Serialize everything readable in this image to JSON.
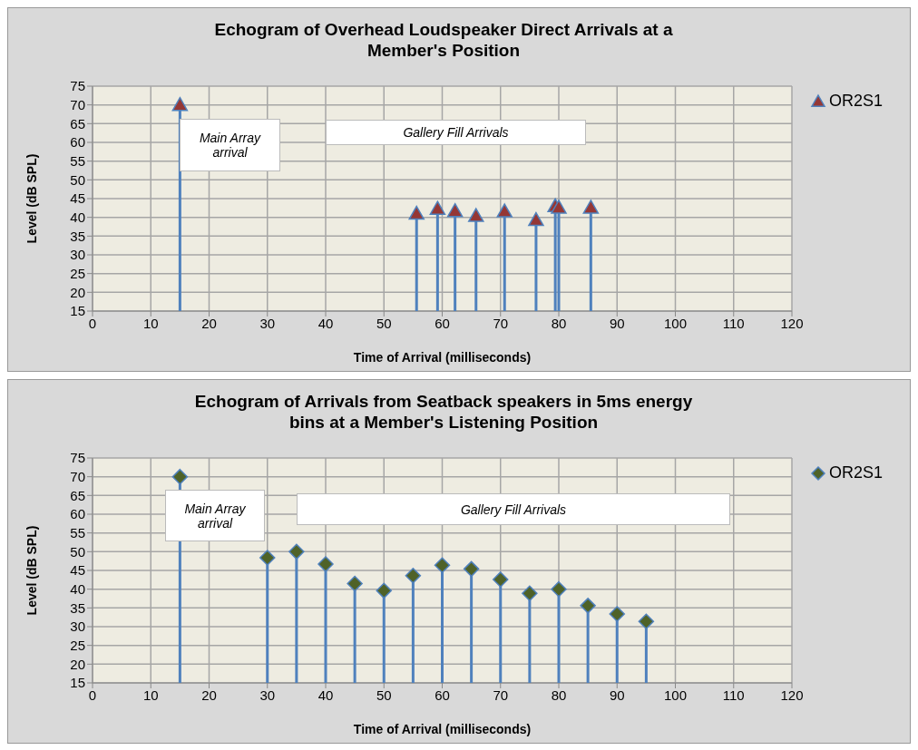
{
  "chart_data": [
    {
      "type": "lollipop",
      "title": "Echogram of Overhead Loudspeaker Direct Arrivals at a Member's Position",
      "xlabel": "Time of Arrival (milliseconds)",
      "ylabel": "Level (dB SPL)",
      "annotations": [
        "Main Array arrival",
        "Gallery Fill Arrivals"
      ],
      "series": [
        {
          "name": "OR2S1",
          "color": "#953735",
          "x": [
            15,
            55.6,
            59.2,
            62.2,
            65.8,
            70.7,
            76.1,
            79.4,
            80,
            85.5
          ],
          "values": [
            70,
            41,
            42.3,
            41.7,
            40.4,
            41.6,
            39.3,
            43,
            42.6,
            42.6
          ]
        }
      ],
      "xlim": [
        0,
        120
      ],
      "xticks": [
        0,
        10,
        20,
        30,
        40,
        50,
        60,
        70,
        80,
        90,
        100,
        110,
        120
      ],
      "ylim": [
        15,
        75
      ],
      "yticks": [
        15,
        20,
        25,
        30,
        35,
        40,
        45,
        50,
        55,
        60,
        65,
        70,
        75
      ],
      "grid": true,
      "legend": "right",
      "marker": "triangle"
    },
    {
      "type": "lollipop",
      "title": "Echogram of Arrivals from Seatback speakers in 5ms energy bins at a Member's Listening Position",
      "xlabel": "Time of Arrival (milliseconds)",
      "ylabel": "Level (dB SPL)",
      "annotations": [
        "Main Array arrival",
        "Gallery Fill Arrivals"
      ],
      "series": [
        {
          "name": "OR2S1",
          "color": "#4f6228",
          "x": [
            15,
            30,
            35,
            40,
            45,
            50,
            55,
            60,
            65,
            70,
            75,
            80,
            85,
            90,
            95
          ],
          "values": [
            70,
            48.4,
            50,
            46.7,
            41.5,
            39.6,
            43.6,
            46.4,
            45.4,
            42.6,
            38.9,
            40,
            35.6,
            33.4,
            31.4
          ]
        }
      ],
      "xlim": [
        0,
        120
      ],
      "xticks": [
        0,
        10,
        20,
        30,
        40,
        50,
        60,
        70,
        80,
        90,
        100,
        110,
        120
      ],
      "ylim": [
        15,
        75
      ],
      "yticks": [
        15,
        20,
        25,
        30,
        35,
        40,
        45,
        50,
        55,
        60,
        65,
        70,
        75
      ],
      "grid": true,
      "legend": "right",
      "marker": "diamond"
    }
  ]
}
